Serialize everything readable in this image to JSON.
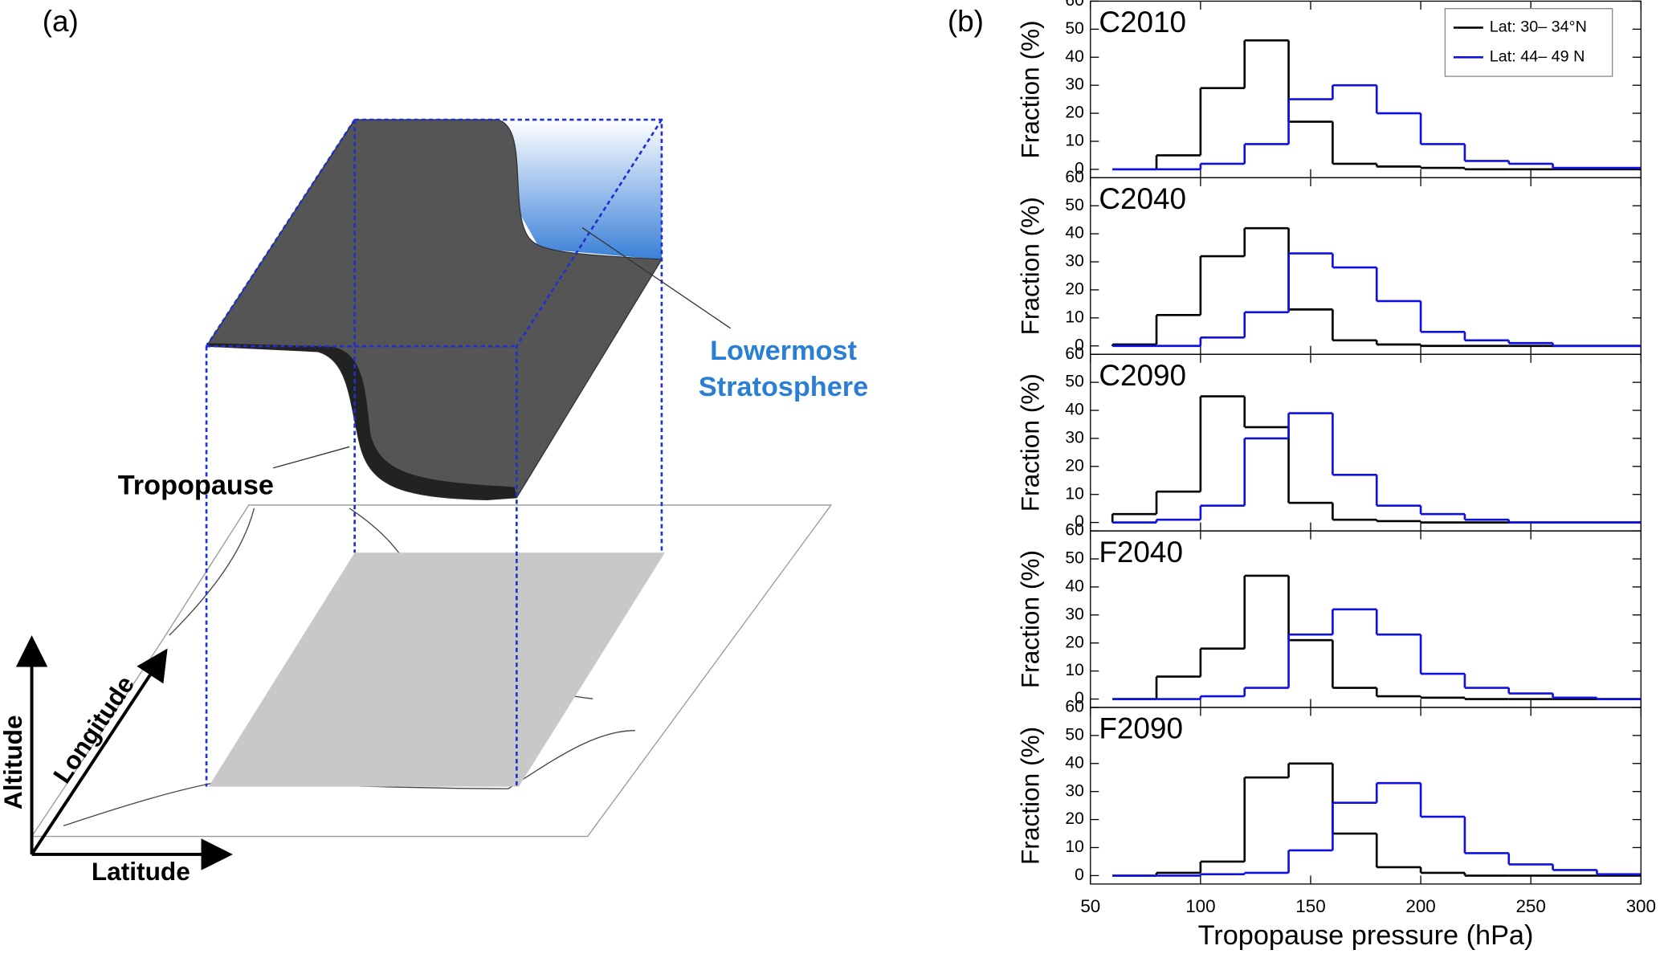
{
  "panel_a": {
    "label": "(a)",
    "tropopause": "Tropopause",
    "annotation_line1": "Lowermost",
    "annotation_line2": "Stratosphere",
    "axis_altitude": "Altitude",
    "axis_longitude": "Longitude",
    "axis_latitude": "Latitude"
  },
  "panel_b": {
    "label": "(b)"
  },
  "chart_data": [
    {
      "type": "histogram",
      "title": "C2010",
      "ylabel": "Fraction (%)",
      "bins": [
        60,
        80,
        100,
        120,
        140,
        160,
        180,
        200,
        220,
        240,
        260,
        280,
        300
      ],
      "xlim": [
        50,
        300
      ],
      "xticks": [
        50,
        100,
        150,
        200,
        250,
        300
      ],
      "ylim": [
        -3,
        60
      ],
      "yticks": [
        0,
        10,
        20,
        30,
        40,
        50,
        60
      ],
      "legend": "upper right",
      "series": [
        {
          "name": "Lat: 30– 34°N",
          "color": "#000000",
          "values": [
            0,
            5,
            29,
            46,
            17,
            2,
            1,
            0.5,
            0,
            0,
            0,
            0
          ]
        },
        {
          "name": "Lat: 44– 49 N",
          "color": "#1010e0",
          "values": [
            0,
            0,
            2,
            9,
            25,
            30,
            20,
            9,
            3,
            2,
            0.5,
            0.5
          ]
        }
      ]
    },
    {
      "type": "histogram",
      "title": "C2040",
      "ylabel": "Fraction (%)",
      "bins": [
        60,
        80,
        100,
        120,
        140,
        160,
        180,
        200,
        220,
        240,
        260,
        280,
        300
      ],
      "xlim": [
        50,
        300
      ],
      "xticks": [
        50,
        100,
        150,
        200,
        250,
        300
      ],
      "ylim": [
        -3,
        60
      ],
      "yticks": [
        0,
        10,
        20,
        30,
        40,
        50,
        60
      ],
      "series": [
        {
          "color": "#000000",
          "values": [
            0.5,
            11,
            32,
            42,
            13,
            2,
            0.5,
            0,
            0,
            0,
            0,
            0
          ]
        },
        {
          "color": "#1010e0",
          "values": [
            0,
            0,
            3,
            12,
            33,
            28,
            16,
            5,
            2,
            1,
            0,
            0
          ]
        }
      ]
    },
    {
      "type": "histogram",
      "title": "C2090",
      "ylabel": "Fraction (%)",
      "bins": [
        60,
        80,
        100,
        120,
        140,
        160,
        180,
        200,
        220,
        240,
        260,
        280,
        300
      ],
      "xlim": [
        50,
        300
      ],
      "xticks": [
        50,
        100,
        150,
        200,
        250,
        300
      ],
      "ylim": [
        -3,
        60
      ],
      "yticks": [
        0,
        10,
        20,
        30,
        40,
        50,
        60
      ],
      "series": [
        {
          "color": "#000000",
          "values": [
            3,
            11,
            45,
            34,
            7,
            1,
            0.5,
            0,
            0,
            0,
            0,
            0
          ]
        },
        {
          "color": "#1010e0",
          "values": [
            0,
            1,
            6,
            30,
            39,
            17,
            6,
            3,
            1,
            0,
            0,
            0
          ]
        }
      ]
    },
    {
      "type": "histogram",
      "title": "F2040",
      "ylabel": "Fraction (%)",
      "bins": [
        60,
        80,
        100,
        120,
        140,
        160,
        180,
        200,
        220,
        240,
        260,
        280,
        300
      ],
      "xlim": [
        50,
        300
      ],
      "xticks": [
        50,
        100,
        150,
        200,
        250,
        300
      ],
      "ylim": [
        -3,
        60
      ],
      "yticks": [
        0,
        10,
        20,
        30,
        40,
        50,
        60
      ],
      "series": [
        {
          "color": "#000000",
          "values": [
            0,
            8,
            18,
            44,
            21,
            4,
            1,
            0.5,
            0,
            0,
            0,
            0
          ]
        },
        {
          "color": "#1010e0",
          "values": [
            0,
            0,
            1,
            4,
            23,
            32,
            23,
            9,
            4,
            2,
            0.5,
            0
          ]
        }
      ]
    },
    {
      "type": "histogram",
      "title": "F2090",
      "ylabel": "Fraction (%)",
      "xlabel": "Tropopause pressure (hPa)",
      "bins": [
        60,
        80,
        100,
        120,
        140,
        160,
        180,
        200,
        220,
        240,
        260,
        280,
        300
      ],
      "xlim": [
        50,
        300
      ],
      "xticks": [
        50,
        100,
        150,
        200,
        250,
        300
      ],
      "ylim": [
        -3,
        60
      ],
      "yticks": [
        0,
        10,
        20,
        30,
        40,
        50,
        60
      ],
      "series": [
        {
          "color": "#000000",
          "values": [
            0,
            1,
            5,
            35,
            40,
            15,
            3,
            1,
            0,
            0,
            0,
            0
          ]
        },
        {
          "color": "#1010e0",
          "values": [
            0,
            0,
            0.5,
            1,
            9,
            26,
            33,
            21,
            8,
            4,
            2,
            0.5
          ]
        }
      ]
    }
  ]
}
